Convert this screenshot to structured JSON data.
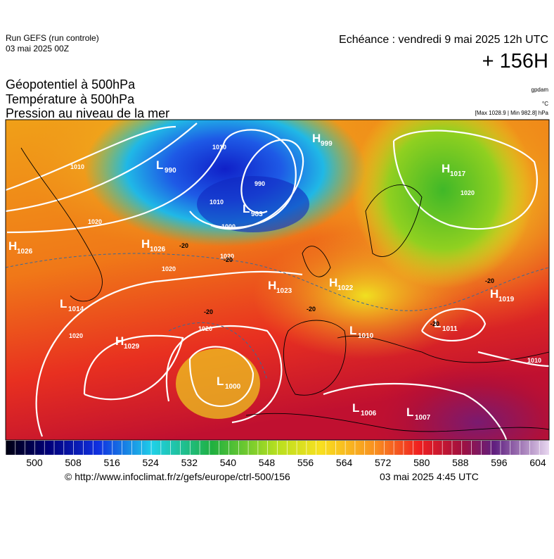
{
  "header": {
    "run": "Run GEFS (run controle)",
    "run_date": "03 mai 2025 00Z",
    "echeance": "Echéance : vendredi 9 mai 2025 12h UTC",
    "lead": "+ 156H",
    "titles": [
      "Géopotentiel à 500hPa",
      "Température à 500hPa",
      "Pression au niveau de la mer"
    ],
    "units": [
      "gpdam",
      "°C",
      "[Max 1028.9 | Min 982.8] hPa"
    ]
  },
  "map": {
    "centers": [
      {
        "type": "L",
        "value": "983"
      },
      {
        "type": "L",
        "value": "990"
      },
      {
        "type": "H",
        "value": "999"
      },
      {
        "type": "H",
        "value": "1026"
      },
      {
        "type": "H",
        "value": "1026"
      },
      {
        "type": "L",
        "value": "1014"
      },
      {
        "type": "H",
        "value": "1023"
      },
      {
        "type": "H",
        "value": "1022"
      },
      {
        "type": "H",
        "value": "1019"
      },
      {
        "type": "L",
        "value": "1011"
      },
      {
        "type": "L",
        "value": "1010"
      },
      {
        "type": "H",
        "value": "1029"
      },
      {
        "type": "L",
        "value": "1000"
      },
      {
        "type": "L",
        "value": "1006"
      },
      {
        "type": "L",
        "value": "1007"
      },
      {
        "type": "H",
        "value": "1017"
      }
    ],
    "isobar_labels": [
      "1010",
      "1010",
      "990",
      "1010",
      "1000",
      "1020",
      "1020",
      "1020",
      "1020",
      "1020",
      "1020",
      "1010"
    ],
    "temperature_labels": [
      "-20",
      "-20",
      "-20",
      "-20",
      "-20",
      "-20"
    ]
  },
  "colorbar": {
    "ticks": [
      500,
      508,
      516,
      524,
      532,
      540,
      548,
      556,
      564,
      572,
      580,
      588,
      596,
      604
    ]
  },
  "footer": {
    "url": "© http://www.infoclimat.fr/z/gefs/europe/ctrl-500/156",
    "time": "03 mai 2025  4:45 UTC"
  }
}
